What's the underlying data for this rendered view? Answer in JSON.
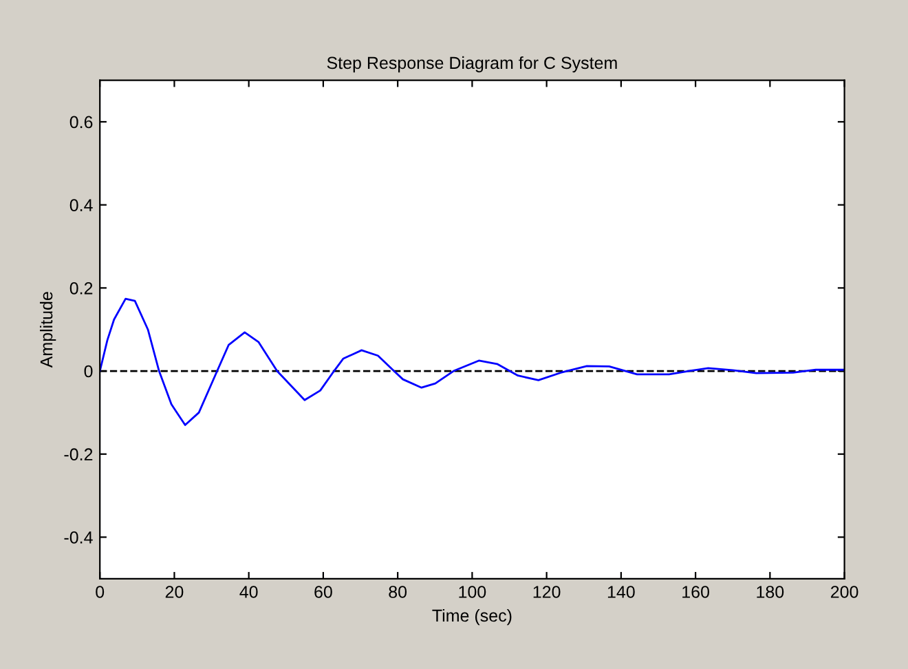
{
  "chart_data": {
    "type": "line",
    "title": "Step Response Diagram for C System",
    "xlabel": "Time (sec)",
    "ylabel": "Amplitude",
    "xlim": [
      0,
      200
    ],
    "ylim": [
      -0.5,
      0.7
    ],
    "xticks": [
      0,
      20,
      40,
      60,
      80,
      100,
      120,
      140,
      160,
      180,
      200
    ],
    "yticks": [
      -0.4,
      -0.2,
      0,
      0.2,
      0.4,
      0.6
    ],
    "grid": false,
    "line_style": "solid",
    "marker": "none",
    "ref_lines": [
      {
        "axis": "y",
        "value": 0,
        "color": "#000000",
        "line_style": "dashed"
      }
    ],
    "series": [
      {
        "color": "#0000ff",
        "x": [
          0,
          2,
          3.8,
          6.9,
          9.4,
          12.9,
          15.9,
          19.2,
          22.9,
          26.6,
          31.5,
          34.6,
          38.9,
          42.6,
          47.6,
          55,
          59.2,
          62.9,
          65.4,
          70.3,
          74.7,
          79,
          81.4,
          86.4,
          90.1,
          95,
          101.8,
          106.7,
          112.3,
          117.8,
          123.8,
          130.8,
          136.8,
          144.3,
          152.9,
          159,
          163.4,
          170,
          176.3,
          186.2,
          192.3,
          200
        ],
        "values": [
          0,
          0.074,
          0.124,
          0.174,
          0.169,
          0.1,
          0,
          -0.08,
          -0.13,
          -0.1,
          0,
          0.063,
          0.093,
          0.07,
          0,
          -0.07,
          -0.047,
          0,
          0.03,
          0.05,
          0.037,
          0,
          -0.02,
          -0.04,
          -0.03,
          0,
          0.025,
          0.017,
          -0.011,
          -0.022,
          -0.004,
          0.012,
          0.011,
          -0.008,
          -0.008,
          0.001,
          0.007,
          0.002,
          -0.005,
          -0.004,
          0.003,
          0.003
        ]
      }
    ]
  }
}
